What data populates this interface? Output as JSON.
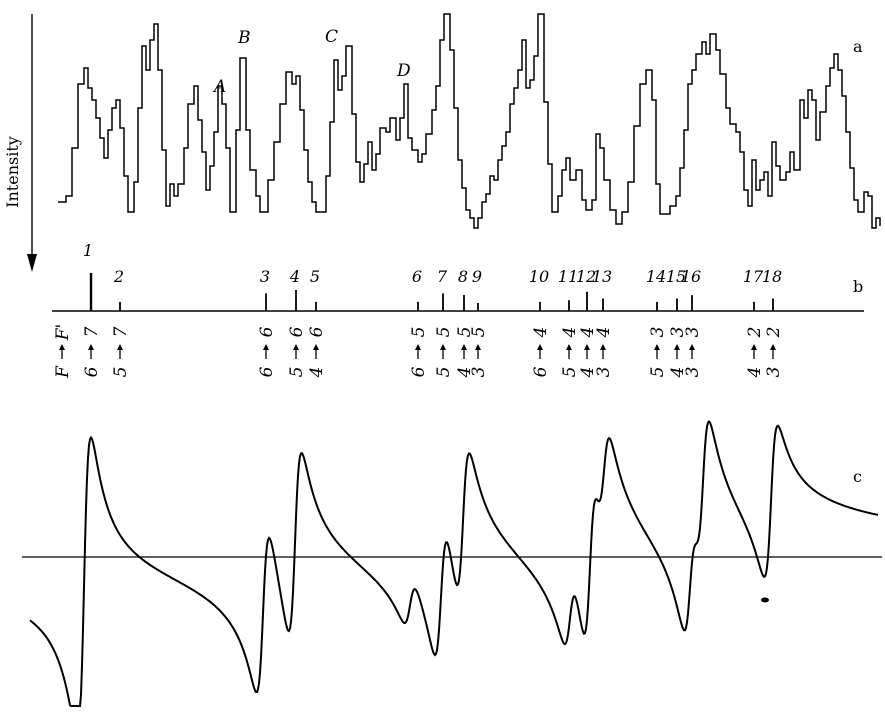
{
  "axis": {
    "ylabel": "Intensity"
  },
  "panels": {
    "a": {
      "label": "a",
      "peak_labels": [
        "A",
        "B",
        "C",
        "D"
      ]
    },
    "b": {
      "label": "b"
    },
    "c": {
      "label": "c"
    }
  },
  "transitions": {
    "header": {
      "lower": "F",
      "upper": "F'"
    },
    "lines": [
      {
        "num": "1",
        "upper": "7",
        "lower": "6",
        "strength": 1.0
      },
      {
        "num": "2",
        "upper": "7",
        "lower": "5",
        "strength": 0.15
      },
      {
        "num": "3",
        "upper": "6",
        "lower": "6",
        "strength": 0.4
      },
      {
        "num": "4",
        "upper": "6",
        "lower": "5",
        "strength": 0.5
      },
      {
        "num": "5",
        "upper": "6",
        "lower": "4",
        "strength": 0.15
      },
      {
        "num": "6",
        "upper": "5",
        "lower": "6",
        "strength": 0.15
      },
      {
        "num": "7",
        "upper": "5",
        "lower": "5",
        "strength": 0.4
      },
      {
        "num": "8",
        "upper": "5",
        "lower": "4",
        "strength": 0.35
      },
      {
        "num": "9",
        "upper": "5",
        "lower": "3",
        "strength": 0.12
      },
      {
        "num": "10",
        "upper": "4",
        "lower": "6",
        "strength": 0.15
      },
      {
        "num": "11",
        "upper": "4",
        "lower": "5",
        "strength": 0.2
      },
      {
        "num": "12",
        "upper": "4",
        "lower": "4",
        "strength": 0.45
      },
      {
        "num": "13",
        "upper": "4",
        "lower": "3",
        "strength": 0.25
      },
      {
        "num": "14",
        "upper": "3",
        "lower": "5",
        "strength": 0.15
      },
      {
        "num": "15",
        "upper": "3",
        "lower": "4",
        "strength": 0.25
      },
      {
        "num": "16",
        "upper": "3",
        "lower": "3",
        "strength": 0.35
      },
      {
        "num": "17",
        "upper": "2",
        "lower": "4",
        "strength": 0.15
      },
      {
        "num": "18",
        "upper": "2",
        "lower": "3",
        "strength": 0.25
      }
    ]
  }
}
